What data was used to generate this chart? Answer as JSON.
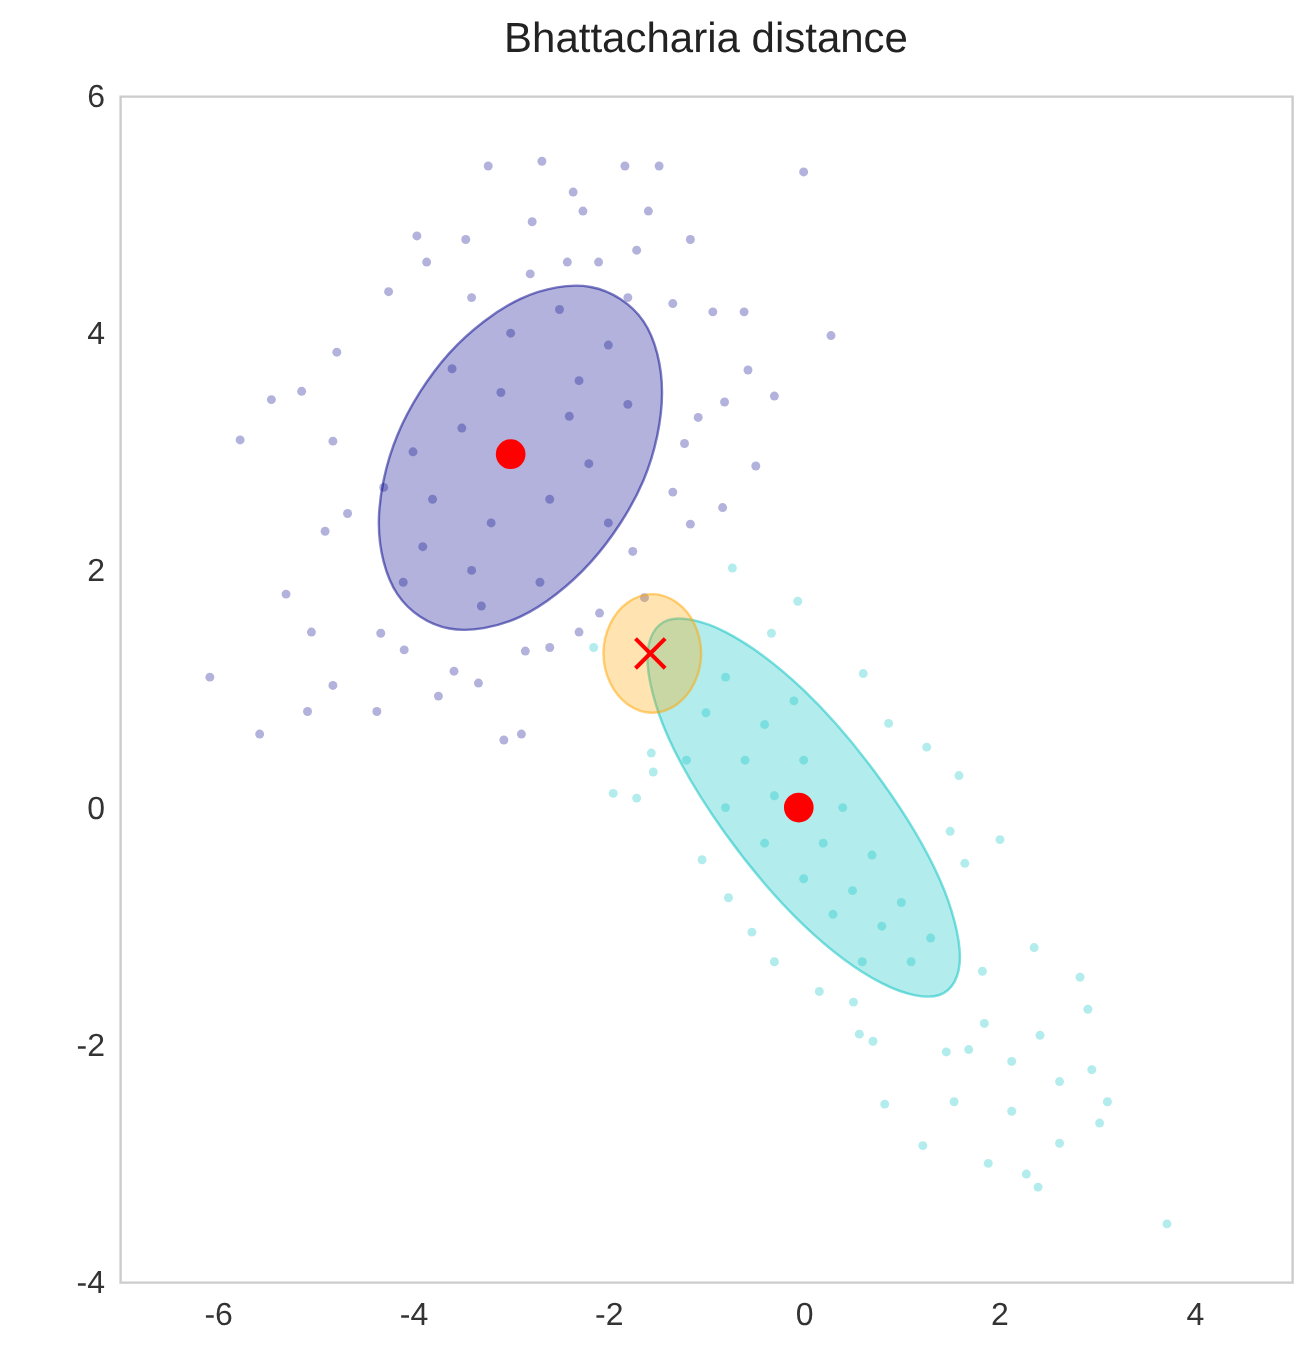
{
  "chart_data": {
    "type": "scatter",
    "title": "Bhattacharia distance",
    "xlim": [
      -7,
      5
    ],
    "xticks": [
      -6,
      -4,
      -2,
      0,
      2,
      4
    ],
    "ylim": [
      -4,
      6
    ],
    "yticks": [
      -4,
      -2,
      0,
      2,
      4,
      6
    ],
    "grid": false,
    "series": [
      {
        "marker": "circle",
        "color": "#00008b",
        "x": [
          -3.23,
          -2.68,
          -1.83,
          -1.48,
          0.0,
          -2.36,
          -2.78,
          -2.26,
          -1.59,
          -3.96,
          -3.46,
          -1.16,
          -2.42,
          -3.86,
          -1.71,
          -4.25,
          0.28,
          -0.61,
          -4.78,
          -5.45,
          -5.14,
          -5.77,
          -4.82,
          -0.49,
          -0.3,
          -0.57,
          -0.81,
          -0.83,
          -4.67,
          -4.9,
          -5.3,
          -5.04,
          -6.08,
          -5.57,
          -5.08,
          -4.37,
          -4.82,
          -3.74,
          -3.33,
          -3.07,
          -2.89,
          -3.58,
          -4.09,
          -4.33,
          -2.85,
          -2.6,
          -2.3,
          -2.09,
          -1.63,
          -1.75,
          -1.16,
          -1.34,
          -1.22,
          -1.08,
          -1.34,
          -0.93,
          -3.5,
          -2.3,
          -3.2,
          -2.6,
          -3.8,
          -2.0,
          -3.0,
          -2.5,
          -3.6,
          -4.0,
          -3.4,
          -2.7,
          -2.2,
          -1.8,
          -3.9,
          -3.1,
          -2.4,
          -2.0,
          -3.3,
          -4.1,
          -1.8,
          -2.8,
          -3.4,
          -4.3,
          -2.1
        ],
        "values": [
          5.41,
          5.45,
          5.41,
          5.41,
          5.36,
          5.19,
          4.94,
          5.03,
          5.03,
          4.82,
          4.79,
          4.79,
          4.6,
          4.6,
          4.7,
          4.35,
          3.98,
          4.18,
          3.84,
          3.44,
          3.51,
          3.1,
          3.09,
          2.88,
          3.47,
          3.69,
          3.42,
          2.53,
          2.48,
          2.33,
          1.8,
          1.48,
          1.1,
          0.62,
          0.81,
          0.81,
          1.03,
          0.94,
          1.05,
          0.57,
          0.62,
          1.15,
          1.33,
          1.47,
          1.32,
          1.35,
          1.48,
          1.64,
          1.77,
          2.16,
          2.39,
          2.66,
          3.07,
          3.29,
          4.25,
          4.18,
          3.2,
          3.6,
          2.4,
          2.6,
          2.6,
          3.9,
          4.0,
          4.2,
          3.7,
          3.0,
          2.0,
          1.9,
          2.9,
          3.4,
          2.2,
          3.5,
          3.3,
          2.4,
          1.7,
          1.9,
          4.3,
          4.5,
          4.3,
          2.7,
          4.6
        ]
      },
      {
        "marker": "circle",
        "color": "#00bfbf",
        "x": [
          3.72,
          2.4,
          2.28,
          1.89,
          1.22,
          2.62,
          3.03,
          3.11,
          2.13,
          0.83,
          1.54,
          2.95,
          2.62,
          2.13,
          2.91,
          2.83,
          2.42,
          1.69,
          1.46,
          0.71,
          0.57,
          1.85,
          2.36,
          2.01,
          1.59,
          1.26,
          0.87,
          0.61,
          -0.06,
          -0.73,
          -0.33,
          -1.95,
          -1.71,
          -1.56,
          -1.54,
          -1.04,
          -0.77,
          -0.53,
          -0.3,
          0.16,
          0.51,
          1.83,
          1.65,
          1.5,
          -2.15,
          -1.0,
          -0.6,
          -0.3,
          0.2,
          0.5,
          0.8,
          1.1,
          -0.8,
          -0.4,
          0.0,
          0.4,
          0.7,
          1.0,
          -1.2,
          -0.8,
          -0.4,
          0.0,
          0.3,
          1.3,
          -0.1,
          0.6
        ],
        "values": [
          -3.51,
          -3.2,
          -3.09,
          -3.0,
          -2.85,
          -2.83,
          -2.66,
          -2.48,
          -2.56,
          -2.5,
          -2.48,
          -2.21,
          -2.31,
          -2.14,
          -1.7,
          -1.43,
          -1.92,
          -2.04,
          -2.06,
          -1.97,
          -1.91,
          -1.82,
          -1.18,
          -0.27,
          0.27,
          0.51,
          0.71,
          1.13,
          1.74,
          2.02,
          1.47,
          0.12,
          0.08,
          0.46,
          0.3,
          -0.44,
          -0.76,
          -1.05,
          -1.3,
          -1.55,
          -1.64,
          -1.38,
          -0.47,
          -0.2,
          1.35,
          0.8,
          0.4,
          0.1,
          -0.3,
          -0.7,
          -1.0,
          -1.3,
          1.1,
          0.7,
          0.4,
          0.0,
          -0.4,
          -0.8,
          0.4,
          0.0,
          -0.3,
          -0.6,
          -0.9,
          -1.1,
          0.9,
          -1.3
        ]
      },
      {
        "type": "area",
        "color": "#00008b",
        "x": [
          -1.45,
          -1.64,
          -2.18,
          -2.9,
          -3.63,
          -4.16,
          -4.35,
          -4.16,
          -3.63,
          -2.9,
          -2.18,
          -1.64
        ],
        "values": [
          3.5,
          4.1,
          4.39,
          4.29,
          3.83,
          3.14,
          2.4,
          1.8,
          1.51,
          1.61,
          2.07,
          2.76
        ]
      },
      {
        "type": "area",
        "color": "#00bfbf",
        "x": [
          1.6,
          1.39,
          0.8,
          0,
          -0.8,
          -1.39,
          -1.6,
          -1.39,
          -0.8,
          0,
          0.8,
          1.39
        ],
        "values": [
          -1.26,
          -0.6,
          0.22,
          0.99,
          1.48,
          1.58,
          1.26,
          0.6,
          -0.22,
          -0.99,
          -1.48,
          -1.58
        ]
      },
      {
        "type": "area",
        "color": "#ffa500",
        "x": [
          -1.05,
          -1.12,
          -1.3,
          -1.55,
          -1.8,
          -1.98,
          -2.05,
          -1.98,
          -1.8,
          -1.55,
          -1.3,
          -1.12
        ],
        "values": [
          1.3,
          1.55,
          1.73,
          1.8,
          1.73,
          1.55,
          1.3,
          1.05,
          0.87,
          0.8,
          0.87,
          1.05
        ]
      },
      {
        "marker": "circle",
        "color": "#ff0000",
        "x": [
          -3.0,
          -0.05
        ],
        "values": [
          2.98,
          0.0
        ]
      },
      {
        "marker": "cross",
        "color": "#ff0000",
        "x": [
          -1.57
        ],
        "values": [
          1.3
        ]
      }
    ]
  }
}
